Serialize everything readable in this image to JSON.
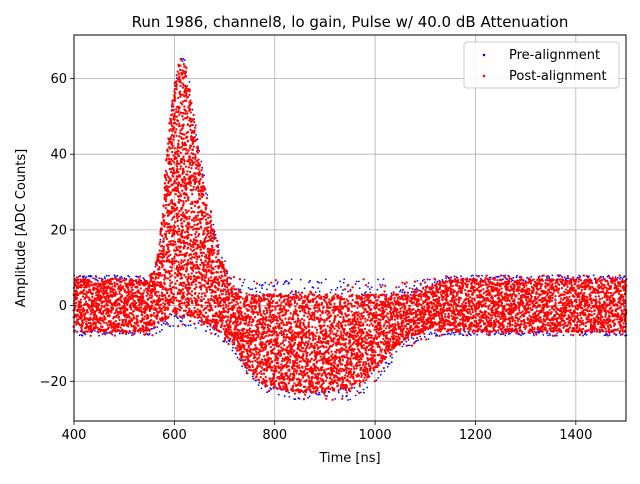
{
  "chart_data": {
    "type": "scatter",
    "title": "Run 1986, channel8, lo gain, Pulse w/ 40.0 dB Attenuation",
    "xlabel": "Time [ns]",
    "ylabel": "Amplitude [ADC Counts]",
    "xlim": [
      400,
      1500
    ],
    "ylim": [
      -30.5,
      71.5
    ],
    "xticks": [
      400,
      600,
      800,
      1000,
      1200,
      1400
    ],
    "xtick_labels": [
      "400",
      "600",
      "800",
      "1000",
      "1200",
      "1400"
    ],
    "yticks": [
      -20,
      0,
      20,
      40,
      60
    ],
    "ytick_labels": [
      "−20",
      "0",
      "20",
      "40",
      "60"
    ],
    "grid": true,
    "legend_position": "top-right",
    "series": [
      {
        "name": "Pre-alignment",
        "color": "#0000ff",
        "marker": "dot",
        "band_description": "dense band of points: baseline noise about -8 to +8 counts, pulse peak near 67 counts at ~610 ns, undershoot down to about -26 counts near 900 ns"
      },
      {
        "name": "Post-alignment",
        "color": "#ff0000",
        "marker": "dot",
        "band_description": "same shape, plotted on top of pre-alignment"
      }
    ],
    "envelope": {
      "time_ns": [
        400,
        550,
        560,
        570,
        580,
        590,
        600,
        610,
        620,
        630,
        640,
        650,
        660,
        670,
        680,
        690,
        700,
        710,
        720,
        730,
        740,
        760,
        780,
        800,
        850,
        900,
        950,
        980,
        1000,
        1020,
        1040,
        1060,
        1080,
        1100,
        1150,
        1200,
        1300,
        1400,
        1500
      ],
      "upper": [
        7,
        7,
        9,
        16,
        32,
        48,
        58,
        66,
        64,
        58,
        48,
        39,
        32,
        25,
        19,
        14,
        10,
        7,
        5,
        4,
        3,
        3,
        3,
        3,
        3,
        3,
        3,
        3,
        3,
        3,
        3,
        3,
        4,
        5,
        7,
        7,
        7,
        7,
        7
      ],
      "lower": [
        -7,
        -7,
        -6,
        -5,
        -4,
        -3,
        -3,
        -3,
        -3,
        -3,
        -3,
        -4,
        -5,
        -5,
        -6,
        -7,
        -8,
        -9,
        -11,
        -13,
        -16,
        -19,
        -21,
        -22,
        -23,
        -23,
        -22,
        -20,
        -17,
        -14,
        -11,
        -9,
        -8,
        -7,
        -7,
        -7,
        -7,
        -7,
        -7
      ],
      "outer_upper": [
        8,
        8,
        10,
        17,
        33,
        49,
        59,
        67,
        65,
        59,
        49,
        40,
        33,
        26,
        20,
        15,
        12,
        9,
        8,
        7,
        7,
        7,
        7,
        7,
        7,
        7,
        7,
        7,
        7,
        7,
        7,
        7,
        7,
        7,
        8,
        8,
        8,
        8,
        8
      ],
      "outer_lower": [
        -8,
        -8,
        -8,
        -7,
        -6,
        -6,
        -6,
        -6,
        -6,
        -6,
        -6,
        -6,
        -7,
        -7,
        -8,
        -9,
        -10,
        -11,
        -13,
        -15,
        -18,
        -21,
        -23,
        -24,
        -25,
        -26,
        -25,
        -23,
        -20,
        -17,
        -14,
        -12,
        -10,
        -9,
        -8,
        -8,
        -8,
        -8,
        -8
      ]
    }
  }
}
